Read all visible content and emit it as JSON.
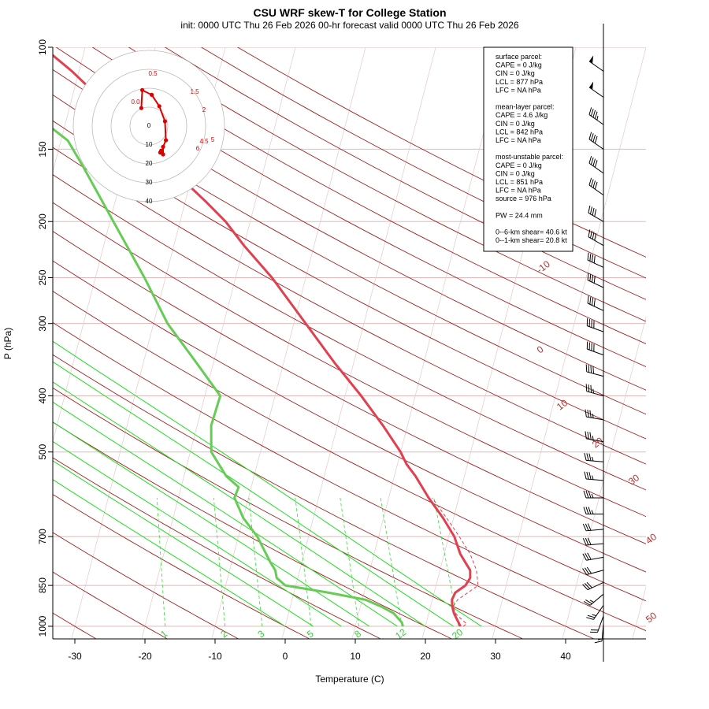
{
  "header": {
    "title": "CSU WRF skew-T for College Station",
    "subtitle": "init: 0000 UTC Thu 26 Feb 2026     00-hr forecast valid 0000 UTC Thu 26 Feb 2026"
  },
  "axes": {
    "xlabel": "Temperature (C)",
    "ylabel": "P (hPa)",
    "x_ticks": [
      -30,
      -20,
      -10,
      0,
      10,
      20,
      30,
      40
    ],
    "y_ticks": [
      100,
      150,
      200,
      250,
      300,
      400,
      500,
      700,
      850,
      1000
    ],
    "xlim": [
      -33,
      51
    ],
    "ylim": [
      1000,
      100
    ]
  },
  "chart_data": {
    "type": "line",
    "y_scale": "log",
    "series": [
      {
        "name": "",
        "color": "#e04050",
        "points": [
          [
            25,
            1000
          ],
          [
            24.3,
            975
          ],
          [
            23.6,
            950
          ],
          [
            23.1,
            925
          ],
          [
            22.8,
            900
          ],
          [
            23,
            875
          ],
          [
            24.2,
            850
          ],
          [
            24.6,
            825
          ],
          [
            24.3,
            800
          ],
          [
            23.3,
            775
          ],
          [
            22.3,
            750
          ],
          [
            20.8,
            700
          ],
          [
            18.5,
            650
          ],
          [
            15.7,
            600
          ],
          [
            13,
            550
          ],
          [
            11.3,
            525
          ],
          [
            10,
            500
          ],
          [
            6.5,
            450
          ],
          [
            2.3,
            400
          ],
          [
            -2.8,
            350
          ],
          [
            -8.3,
            300
          ],
          [
            -14.8,
            250
          ],
          [
            -20,
            220
          ],
          [
            -23.5,
            200
          ],
          [
            -27,
            185
          ],
          [
            -31,
            170
          ],
          [
            -35.5,
            155
          ],
          [
            -40,
            140
          ],
          [
            -45,
            125
          ],
          [
            -51,
            110
          ],
          [
            -56,
            100
          ]
        ]
      },
      {
        "name": "",
        "color": "#66cc55",
        "points": [
          [
            16.8,
            1000
          ],
          [
            16.5,
            985
          ],
          [
            15,
            950
          ],
          [
            13,
            925
          ],
          [
            10.5,
            900
          ],
          [
            5,
            875
          ],
          [
            -1.5,
            850
          ],
          [
            -3,
            825
          ],
          [
            -3.5,
            800
          ],
          [
            -4.5,
            775
          ],
          [
            -7.3,
            700
          ],
          [
            -10,
            650
          ],
          [
            -12,
            600
          ],
          [
            -11.8,
            575
          ],
          [
            -14,
            550
          ],
          [
            -17,
            500
          ],
          [
            -18,
            450
          ],
          [
            -17.8,
            400
          ],
          [
            -22.5,
            350
          ],
          [
            -28,
            300
          ],
          [
            -33,
            250
          ],
          [
            -39.5,
            200
          ],
          [
            -46,
            160
          ],
          [
            -49,
            145
          ],
          [
            -55,
            130
          ]
        ]
      }
    ],
    "parcel_trace": [
      [
        25.4,
        1000
      ],
      [
        25.8,
        990
      ],
      [
        25,
        975
      ],
      [
        23.8,
        950
      ],
      [
        23.2,
        925
      ],
      [
        23.6,
        900
      ],
      [
        24.8,
        875
      ],
      [
        26,
        850
      ],
      [
        25.2,
        800
      ],
      [
        23.7,
        750
      ],
      [
        21.5,
        700
      ],
      [
        19,
        650
      ],
      [
        16.2,
        600
      ]
    ],
    "isotherm_labels": [
      "-10",
      "0",
      "10",
      "20",
      "30",
      "40",
      "50"
    ],
    "mixing_ratio_labels": [
      "1",
      "2",
      "3",
      "5",
      "8",
      "12",
      "20"
    ],
    "hodograph": {
      "ring_labels": [
        "0",
        "10",
        "20",
        "30",
        "40"
      ],
      "point_labels": [
        "0.0",
        "0.5",
        "1.5",
        "2",
        "4.5",
        "5",
        "6"
      ],
      "points": [
        [
          -4,
          9.5
        ],
        [
          -3.5,
          19
        ],
        [
          1.5,
          16.5
        ],
        [
          5.5,
          10.5
        ],
        [
          8.5,
          2.5
        ],
        [
          9,
          -7.5
        ],
        [
          7.5,
          -11
        ],
        [
          7.5,
          -15
        ],
        [
          6.5,
          -13
        ],
        [
          6,
          -14
        ]
      ]
    },
    "wind_barbs_kt": [
      {
        "p": 110,
        "speed": 50,
        "dir": 305
      },
      {
        "p": 122,
        "speed": 50,
        "dir": 305
      },
      {
        "p": 136,
        "speed": 45,
        "dir": 305
      },
      {
        "p": 150,
        "speed": 40,
        "dir": 305
      },
      {
        "p": 165,
        "speed": 40,
        "dir": 305
      },
      {
        "p": 180,
        "speed": 40,
        "dir": 305
      },
      {
        "p": 200,
        "speed": 40,
        "dir": 300
      },
      {
        "p": 220,
        "speed": 40,
        "dir": 300
      },
      {
        "p": 240,
        "speed": 40,
        "dir": 295
      },
      {
        "p": 260,
        "speed": 40,
        "dir": 295
      },
      {
        "p": 285,
        "speed": 40,
        "dir": 295
      },
      {
        "p": 310,
        "speed": 40,
        "dir": 290
      },
      {
        "p": 340,
        "speed": 40,
        "dir": 290
      },
      {
        "p": 370,
        "speed": 40,
        "dir": 285
      },
      {
        "p": 400,
        "speed": 35,
        "dir": 285
      },
      {
        "p": 440,
        "speed": 35,
        "dir": 280
      },
      {
        "p": 480,
        "speed": 35,
        "dir": 280
      },
      {
        "p": 520,
        "speed": 35,
        "dir": 275
      },
      {
        "p": 560,
        "speed": 35,
        "dir": 275
      },
      {
        "p": 600,
        "speed": 35,
        "dir": 270
      },
      {
        "p": 640,
        "speed": 35,
        "dir": 270
      },
      {
        "p": 680,
        "speed": 30,
        "dir": 265
      },
      {
        "p": 720,
        "speed": 30,
        "dir": 265
      },
      {
        "p": 760,
        "speed": 30,
        "dir": 260
      },
      {
        "p": 800,
        "speed": 30,
        "dir": 255
      },
      {
        "p": 840,
        "speed": 30,
        "dir": 245
      },
      {
        "p": 880,
        "speed": 25,
        "dir": 230
      },
      {
        "p": 920,
        "speed": 25,
        "dir": 215
      },
      {
        "p": 960,
        "speed": 20,
        "dir": 200
      },
      {
        "p": 990,
        "speed": 15,
        "dir": 185
      }
    ]
  },
  "info_box": {
    "lines": [
      "surface parcel:",
      "CAPE = 0 J/kg",
      "CIN = 0 J/kg",
      "LCL = 877 hPa",
      "LFC = NA hPa",
      "",
      "mean-layer parcel:",
      "CAPE = 4.6 J/kg",
      "CIN = 0 J/kg",
      "LCL = 842 hPa",
      "LFC = NA hPa",
      "",
      "most-unstable parcel:",
      "CAPE = 0 J/kg",
      "CIN = 0 J/kg",
      "LCL = 851 hPa",
      "LFC = NA hPa",
      "source = 976 hPa",
      "",
      "PW =  24.4 mm",
      "",
      "0--6-km shear= 40.6 kt",
      "0--1-km shear= 20.8 kt"
    ]
  },
  "colors": {
    "temperature": "#e04050",
    "dewpoint": "#66cc55",
    "isotherm": "#a02020",
    "mixing_ratio": "#33dd33",
    "moist_adiabat": "#22dd22",
    "hodograph": "#dd0000"
  }
}
